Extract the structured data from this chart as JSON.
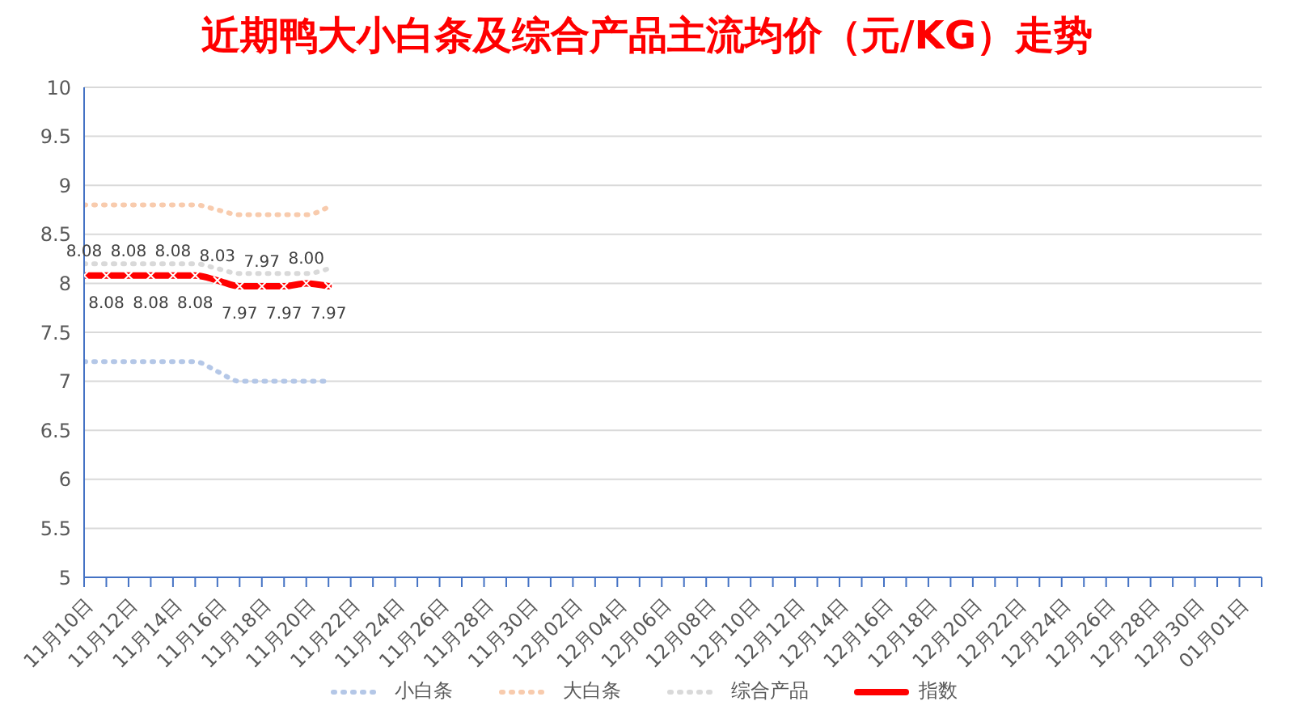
{
  "chart_data": {
    "type": "line",
    "title": "近期鸭大小白条及综合产品主流均价（元/KG）走势",
    "categories": [
      "11月10日",
      null,
      "11月12日",
      null,
      "11月14日",
      null,
      "11月16日",
      null,
      "11月18日",
      null,
      "11月20日",
      null,
      "11月22日",
      null,
      "11月24日",
      null,
      "11月26日",
      null,
      "11月28日",
      null,
      "11月30日",
      null,
      "12月02日",
      null,
      "12月04日",
      null,
      "12月06日",
      null,
      "12月08日",
      null,
      "12月10日",
      null,
      "12月12日",
      null,
      "12月14日",
      null,
      "12月16日",
      null,
      "12月18日",
      null,
      "12月20日",
      null,
      "12月22日",
      null,
      "12月24日",
      null,
      "12月26日",
      null,
      "12月28日",
      null,
      "12月30日",
      null,
      "01月01日",
      null
    ],
    "series": [
      {
        "name": "小白条",
        "color": "#b4c7e7",
        "line_style": "dotted",
        "marker": "none",
        "values": [
          7.2,
          7.2,
          7.2,
          7.2,
          7.2,
          7.2,
          7.1,
          7.0,
          7.0,
          7.0,
          7.0,
          7.0,
          null,
          null,
          null,
          null,
          null,
          null,
          null,
          null,
          null,
          null,
          null,
          null,
          null,
          null,
          null,
          null,
          null,
          null,
          null,
          null,
          null,
          null,
          null,
          null,
          null,
          null,
          null,
          null,
          null,
          null,
          null,
          null,
          null,
          null,
          null,
          null,
          null,
          null,
          null,
          null,
          null,
          null
        ]
      },
      {
        "name": "大白条",
        "color": "#f8cbad",
        "line_style": "dotted",
        "marker": "none",
        "values": [
          8.8,
          8.8,
          8.8,
          8.8,
          8.8,
          8.8,
          8.75,
          8.7,
          8.7,
          8.7,
          8.7,
          8.78,
          null,
          null,
          null,
          null,
          null,
          null,
          null,
          null,
          null,
          null,
          null,
          null,
          null,
          null,
          null,
          null,
          null,
          null,
          null,
          null,
          null,
          null,
          null,
          null,
          null,
          null,
          null,
          null,
          null,
          null,
          null,
          null,
          null,
          null,
          null,
          null,
          null,
          null,
          null,
          null,
          null,
          null
        ]
      },
      {
        "name": "综合产品",
        "color": "#d9d9d9",
        "line_style": "dotted",
        "marker": "none",
        "values": [
          8.2,
          8.2,
          8.2,
          8.2,
          8.2,
          8.2,
          8.15,
          8.1,
          8.1,
          8.1,
          8.1,
          8.15,
          null,
          null,
          null,
          null,
          null,
          null,
          null,
          null,
          null,
          null,
          null,
          null,
          null,
          null,
          null,
          null,
          null,
          null,
          null,
          null,
          null,
          null,
          null,
          null,
          null,
          null,
          null,
          null,
          null,
          null,
          null,
          null,
          null,
          null,
          null,
          null,
          null,
          null,
          null,
          null,
          null,
          null
        ]
      },
      {
        "name": "指数",
        "color": "#ff0000",
        "line_style": "solid",
        "marker": "cross",
        "values": [
          8.08,
          8.08,
          8.08,
          8.08,
          8.08,
          8.08,
          8.03,
          7.97,
          7.97,
          7.97,
          8.0,
          7.97,
          null,
          null,
          null,
          null,
          null,
          null,
          null,
          null,
          null,
          null,
          null,
          null,
          null,
          null,
          null,
          null,
          null,
          null,
          null,
          null,
          null,
          null,
          null,
          null,
          null,
          null,
          null,
          null,
          null,
          null,
          null,
          null,
          null,
          null,
          null,
          null,
          null,
          null,
          null,
          null,
          null,
          null
        ],
        "value_labels": [
          "8.08",
          "8.08",
          "8.08",
          "8.08",
          "8.08",
          "8.08",
          "8.03",
          "7.97",
          "7.97",
          "7.97",
          "8.00",
          "7.97",
          null,
          null,
          null,
          null,
          null,
          null,
          null,
          null,
          null,
          null,
          null,
          null,
          null,
          null,
          null,
          null,
          null,
          null,
          null,
          null,
          null,
          null,
          null,
          null,
          null,
          null,
          null,
          null,
          null,
          null,
          null,
          null,
          null,
          null,
          null,
          null,
          null,
          null,
          null,
          null,
          null,
          null
        ]
      }
    ],
    "ylim": [
      5,
      10
    ],
    "yticks": [
      5,
      5.5,
      6,
      6.5,
      7,
      7.5,
      8,
      8.5,
      9,
      9.5,
      10
    ],
    "grid": "y",
    "legend": "bottom"
  }
}
